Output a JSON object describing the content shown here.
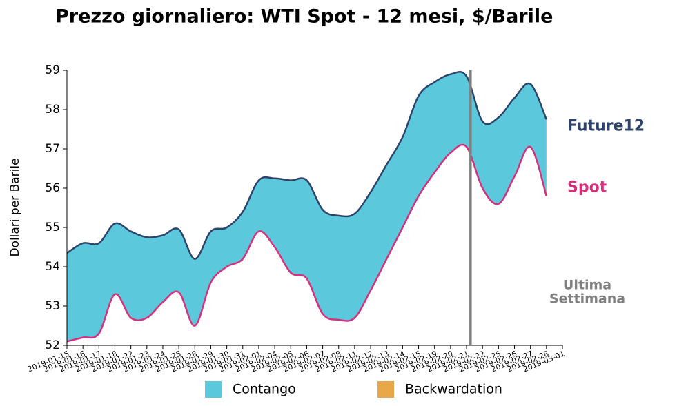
{
  "chart_data": {
    "type": "band-line",
    "title": "Prezzo giornaliero: WTI Spot - 12 mesi, $/Barile",
    "y_label": "Dollari per Barile",
    "x": [
      "2019-01-15",
      "2019-01-16",
      "2019-01-17",
      "2019-01-18",
      "2019-01-22",
      "2019-01-23",
      "2019-01-24",
      "2019-01-25",
      "2019-01-28",
      "2019-01-29",
      "2019-01-30",
      "2019-01-31",
      "2019-02-01",
      "2019-02-04",
      "2019-02-05",
      "2019-02-06",
      "2019-02-07",
      "2019-02-08",
      "2019-02-11",
      "2019-02-12",
      "2019-02-13",
      "2019-02-14",
      "2019-02-15",
      "2019-02-19",
      "2019-02-20",
      "2019-02-21",
      "2019-02-22",
      "2019-02-25",
      "2019-02-26",
      "2019-02-27",
      "2019-02-28",
      "2019-03-01"
    ],
    "series": [
      {
        "name": "Future12",
        "color": "#2e4369",
        "values": [
          54.35,
          54.6,
          54.6,
          55.1,
          54.9,
          54.75,
          54.8,
          54.95,
          54.2,
          54.9,
          55.0,
          55.4,
          56.2,
          56.25,
          56.2,
          56.2,
          55.45,
          55.3,
          55.35,
          55.9,
          56.6,
          57.3,
          58.35,
          58.7,
          58.9,
          58.85,
          57.7,
          57.8,
          58.3,
          58.65,
          57.75,
          null
        ]
      },
      {
        "name": "Spot",
        "color": "#d62f7b",
        "values": [
          52.1,
          52.2,
          52.3,
          53.3,
          52.7,
          52.7,
          53.1,
          53.35,
          52.5,
          53.6,
          54.0,
          54.2,
          54.9,
          54.5,
          53.85,
          53.7,
          52.8,
          52.65,
          52.7,
          53.4,
          54.2,
          55.0,
          55.8,
          56.4,
          56.9,
          57.05,
          56.0,
          55.6,
          56.3,
          57.05,
          55.8,
          null
        ]
      }
    ],
    "legend": [
      {
        "name": "Contango",
        "color": "#5bc8dc"
      },
      {
        "name": "Backwardation",
        "color": "#e8a84a"
      }
    ],
    "marker": {
      "x": "2019-02-21",
      "label": [
        "Ultima",
        "Settimana"
      ],
      "color": "#808080"
    },
    "ylim": [
      52,
      59
    ],
    "yticks": [
      52,
      53,
      54,
      55,
      56,
      57,
      58,
      59
    ]
  }
}
